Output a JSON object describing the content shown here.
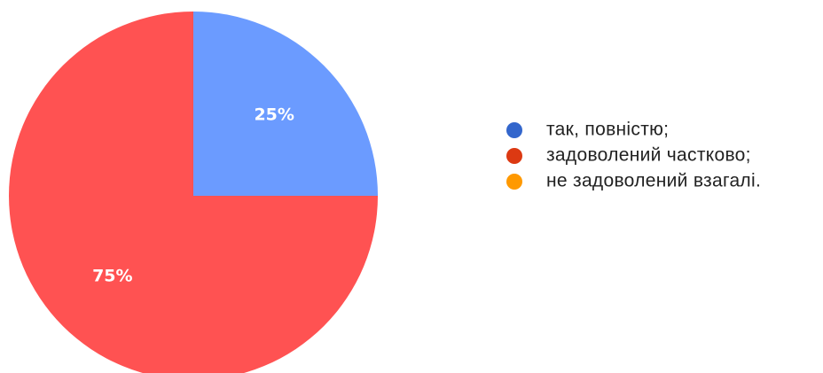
{
  "chart_data": {
    "type": "pie",
    "slices": [
      {
        "label": "так, повністю;",
        "value": 25,
        "display": "25%",
        "color": "#6b9bff",
        "legend_color": "#3366cc"
      },
      {
        "label": "задоволений частково;",
        "value": 75,
        "display": "75%",
        "color": "#ff5252",
        "legend_color": "#dc3912"
      },
      {
        "label": "не задоволений взагалі.",
        "value": 0,
        "display": "",
        "color": "#ff9900",
        "legend_color": "#ff9900"
      }
    ],
    "start_angle_deg": 0,
    "legend_position": "right",
    "title": ""
  }
}
